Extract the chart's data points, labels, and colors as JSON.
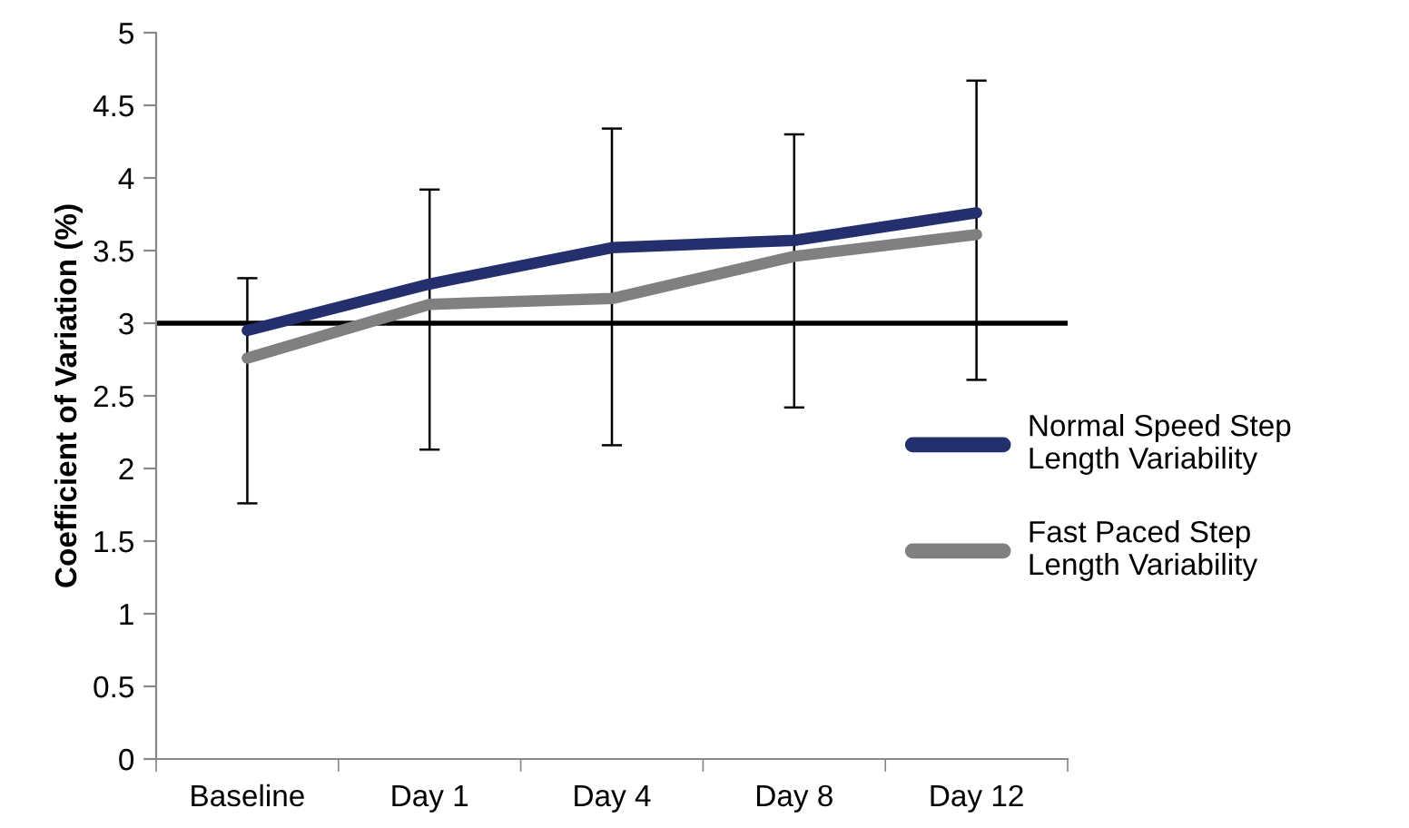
{
  "chart_data": {
    "type": "line",
    "ylabel": "Coefficient of Variation (%)",
    "categories": [
      "Baseline",
      "Day 1",
      "Day 4",
      "Day 8",
      "Day 12"
    ],
    "series": [
      {
        "name": "Normal Speed Step Length Variability",
        "color": "#24306e",
        "values": [
          2.95,
          3.27,
          3.52,
          3.57,
          3.76
        ]
      },
      {
        "name": "Fast Paced Step Length Variability",
        "color": "#808080",
        "values": [
          2.76,
          3.13,
          3.17,
          3.46,
          3.61
        ],
        "errors": [
          [
            1.76,
            3.31
          ],
          [
            2.13,
            3.92
          ],
          [
            2.16,
            4.34
          ],
          [
            2.42,
            4.3
          ],
          [
            2.61,
            4.67
          ]
        ]
      }
    ],
    "ylim": [
      0,
      5
    ],
    "yticks": [
      0,
      0.5,
      1,
      1.5,
      2,
      2.5,
      3,
      3.5,
      4,
      4.5,
      5
    ],
    "ref_lines": [
      {
        "axis": "y",
        "value": 3,
        "color": "#000000"
      }
    ],
    "grid": false,
    "legend": "right",
    "marker": "none",
    "line_style": "solid"
  }
}
